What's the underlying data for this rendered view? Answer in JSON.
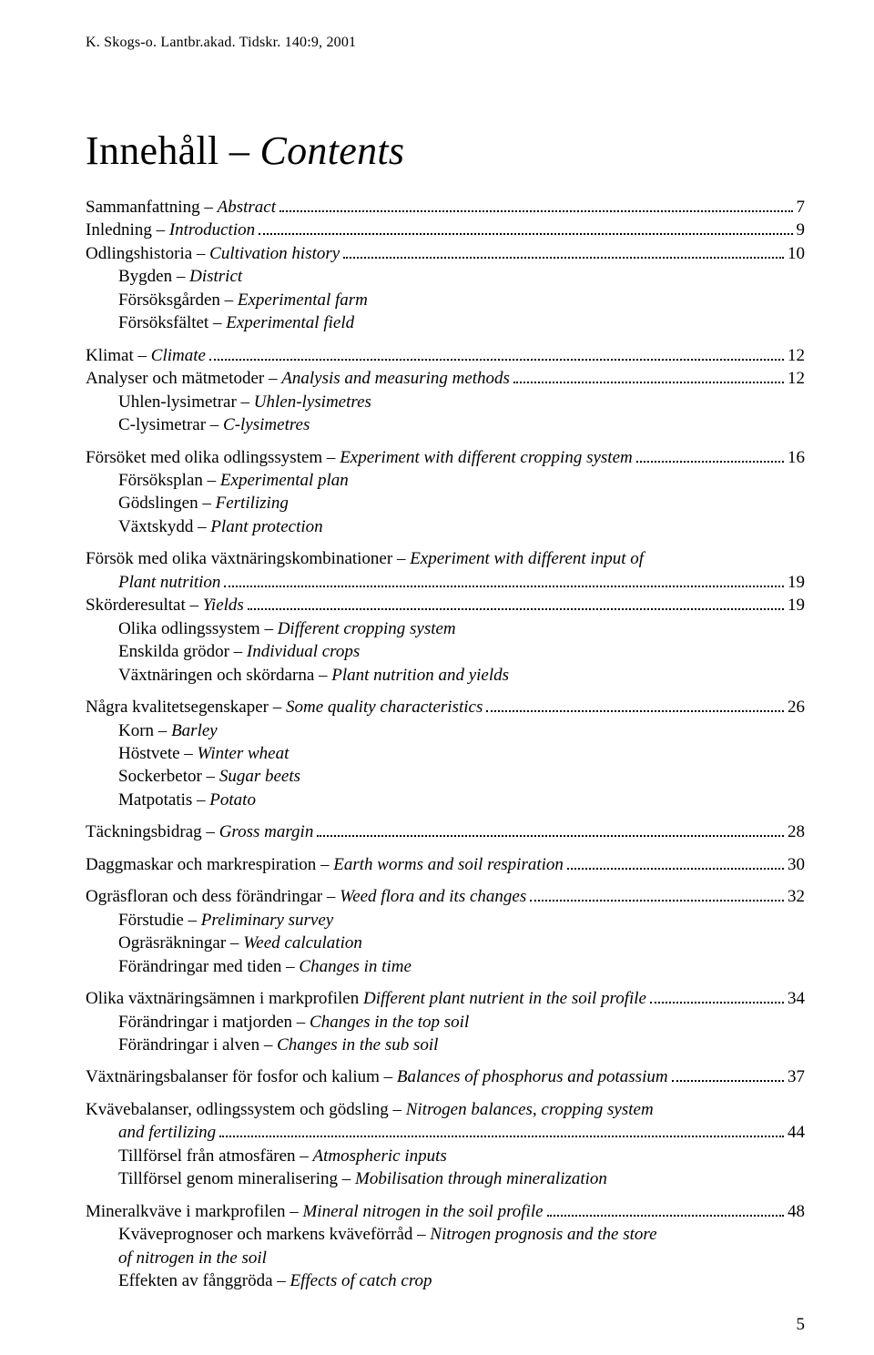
{
  "page": {
    "running_head": "K. Skogs-o. Lantbr.akad. Tidskr. 140:9, 2001",
    "page_number": "5"
  },
  "title": {
    "sv": "Innehåll – ",
    "en": "Contents"
  },
  "toc": [
    {
      "rows": [
        {
          "sv": "Sammanfattning – ",
          "en": "Abstract",
          "pg": "7"
        },
        {
          "sv": "Inledning – ",
          "en": "Introduction",
          "pg": "9"
        },
        {
          "sv": "Odlingshistoria – ",
          "en": "Cultivation history",
          "pg": "10"
        }
      ],
      "subs": [
        {
          "sv": "Bygden – ",
          "en": "District"
        },
        {
          "sv": "Försöksgården – ",
          "en": "Experimental farm"
        },
        {
          "sv": "Försöksfältet – ",
          "en": "Experimental field"
        }
      ]
    },
    {
      "rows": [
        {
          "sv": "Klimat – ",
          "en": "Climate",
          "pg": "12"
        },
        {
          "sv": "Analyser och mätmetoder – ",
          "en": "Analysis and measuring methods",
          "pg": "12"
        }
      ],
      "subs": [
        {
          "sv": "Uhlen-lysimetrar – ",
          "en": "Uhlen-lysimetres"
        },
        {
          "sv": "C-lysimetrar – ",
          "en": "C-lysimetres"
        }
      ]
    },
    {
      "rows": [
        {
          "sv": "Försöket med olika odlingssystem – ",
          "en": "Experiment with different cropping system",
          "pg": "16"
        }
      ],
      "subs": [
        {
          "sv": "Försöksplan – ",
          "en": "Experimental plan"
        },
        {
          "sv": "Gödslingen – ",
          "en": "Fertilizing"
        },
        {
          "sv": "Växtskydd – ",
          "en": "Plant protection"
        }
      ]
    },
    {
      "lead": {
        "sv": "Försök med olika växtnäringskombinationer – ",
        "en": "Experiment with different input of"
      },
      "cont": {
        "en": "Plant nutrition",
        "pg": "19"
      },
      "rows": [
        {
          "sv": "Skörderesultat – ",
          "en": "Yields",
          "pg": "19"
        }
      ],
      "subs": [
        {
          "sv": "Olika odlingssystem – ",
          "en": "Different cropping system"
        },
        {
          "sv": "Enskilda grödor – ",
          "en": "Individual crops"
        },
        {
          "sv": "Växtnäringen och skördarna – ",
          "en": "Plant nutrition and yields"
        }
      ]
    },
    {
      "rows": [
        {
          "sv": "Några kvalitetsegenskaper – ",
          "en": "Some quality characteristics",
          "pg": "26"
        }
      ],
      "subs": [
        {
          "sv": "Korn – ",
          "en": "Barley"
        },
        {
          "sv": "Höstvete – ",
          "en": "Winter wheat"
        },
        {
          "sv": "Sockerbetor – ",
          "en": "Sugar beets"
        },
        {
          "sv": "Matpotatis – ",
          "en": "Potato"
        }
      ]
    },
    {
      "rows": [
        {
          "sv": "Täckningsbidrag – ",
          "en": "Gross margin",
          "pg": "28"
        }
      ]
    },
    {
      "rows": [
        {
          "sv": "Daggmaskar och markrespiration – ",
          "en": "Earth worms and soil respiration",
          "pg": "30"
        }
      ]
    },
    {
      "rows": [
        {
          "sv": "Ogräsfloran och dess förändringar – ",
          "en": "Weed flora and its changes",
          "pg": "32"
        }
      ],
      "subs": [
        {
          "sv": "Förstudie – ",
          "en": "Preliminary survey"
        },
        {
          "sv": "Ogräsräkningar – ",
          "en": "Weed calculation"
        },
        {
          "sv": "Förändringar med tiden – ",
          "en": "Changes in time"
        }
      ]
    },
    {
      "rows": [
        {
          "sv": "Olika växtnäringsämnen i markprofilen  ",
          "en": "Different plant nutrient in the soil profile",
          "pg": "34"
        }
      ],
      "subs": [
        {
          "sv": "Förändringar i matjorden – ",
          "en": "Changes in the top soil"
        },
        {
          "sv": "Förändringar i alven – ",
          "en": "Changes in the sub soil"
        }
      ]
    },
    {
      "rows": [
        {
          "sv": "Växtnäringsbalanser för fosfor och kalium – ",
          "en": "Balances of phosphorus and potassium",
          "pg": "37"
        }
      ]
    },
    {
      "lead": {
        "sv": "Kvävebalanser, odlingssystem och gödsling – ",
        "en": "Nitrogen balances, cropping system"
      },
      "cont": {
        "en": "and fertilizing",
        "pg": "44"
      },
      "subs": [
        {
          "sv": "Tillförsel från atmosfären – ",
          "en": "Atmospheric inputs"
        },
        {
          "sv": "Tillförsel genom mineralisering – ",
          "en": "Mobilisation through mineralization"
        }
      ]
    },
    {
      "rows": [
        {
          "sv": "Mineralkväve i markprofilen – ",
          "en": "Mineral nitrogen in the soil profile",
          "pg": "48"
        }
      ],
      "subs": [
        {
          "sv": "Kväveprognoser och markens kväveförråd – ",
          "en": "Nitrogen prognosis and the store"
        },
        {
          "en_cont": "of nitrogen in the soil"
        },
        {
          "sv": "Effekten av fånggröda – ",
          "en": "Effects of catch crop"
        }
      ]
    }
  ]
}
